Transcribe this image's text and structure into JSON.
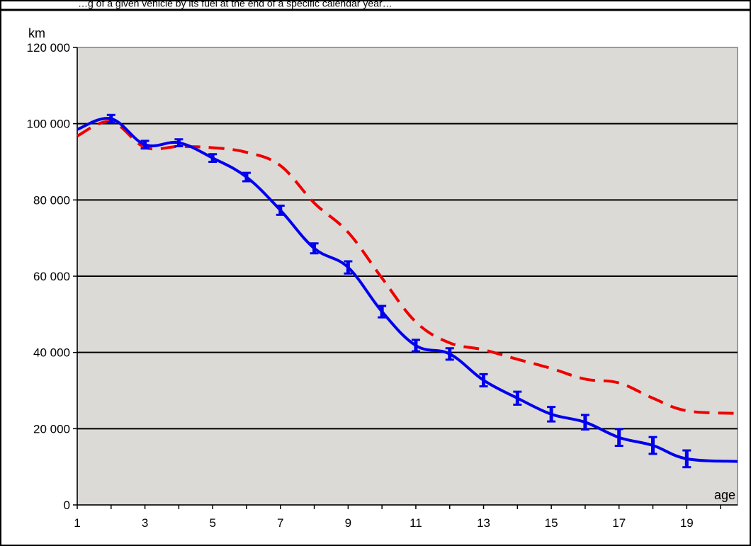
{
  "top_caption": "…g of a given vehicle by its fuel at the end of a specific calendar year…",
  "chart_data": {
    "type": "line",
    "title": "",
    "ylabel": "km",
    "xlabel": "age",
    "xlim": [
      1,
      20.5
    ],
    "ylim": [
      0,
      120000
    ],
    "x_ticks": [
      1,
      3,
      5,
      7,
      9,
      11,
      13,
      15,
      17,
      19
    ],
    "x_tick_labels": [
      "1",
      "3",
      "5",
      "7",
      "9",
      "11",
      "13",
      "15",
      "17",
      "19"
    ],
    "y_ticks": [
      0,
      20000,
      40000,
      60000,
      80000,
      100000,
      120000
    ],
    "y_tick_labels": [
      "0",
      "20 000",
      "40 000",
      "60 000",
      "80 000",
      "100 000",
      "120 000"
    ],
    "grid": true,
    "plot_background": "#dcdad6",
    "series": [
      {
        "style": "solid",
        "color": "#0000ee",
        "error_bars": true,
        "x": [
          1,
          2,
          3,
          4,
          5,
          6,
          7,
          8,
          9,
          10,
          11,
          12,
          13,
          14,
          15,
          16,
          17,
          18,
          19,
          20.5
        ],
        "y": [
          98500,
          101300,
          94500,
          95000,
          91000,
          86000,
          77300,
          67300,
          62300,
          50700,
          41800,
          39600,
          32700,
          28000,
          23800,
          21700,
          17700,
          15600,
          12100,
          11400
        ],
        "err": [
          null,
          1000,
          1000,
          900,
          1000,
          1100,
          1200,
          1300,
          1600,
          1500,
          1500,
          1500,
          1600,
          1700,
          1900,
          1900,
          2200,
          2200,
          2200,
          null
        ]
      },
      {
        "style": "dashed",
        "color": "#ee0000",
        "error_bars": false,
        "x": [
          1,
          2,
          3,
          4,
          5,
          6,
          7,
          8,
          9,
          10,
          11,
          12,
          13,
          14,
          15,
          16,
          17,
          18,
          19,
          20.5
        ],
        "y": [
          96800,
          100500,
          93800,
          94000,
          93700,
          92500,
          89000,
          79200,
          71500,
          59500,
          48000,
          42500,
          40700,
          38200,
          35800,
          33000,
          32000,
          28000,
          24700,
          24000
        ]
      }
    ]
  }
}
